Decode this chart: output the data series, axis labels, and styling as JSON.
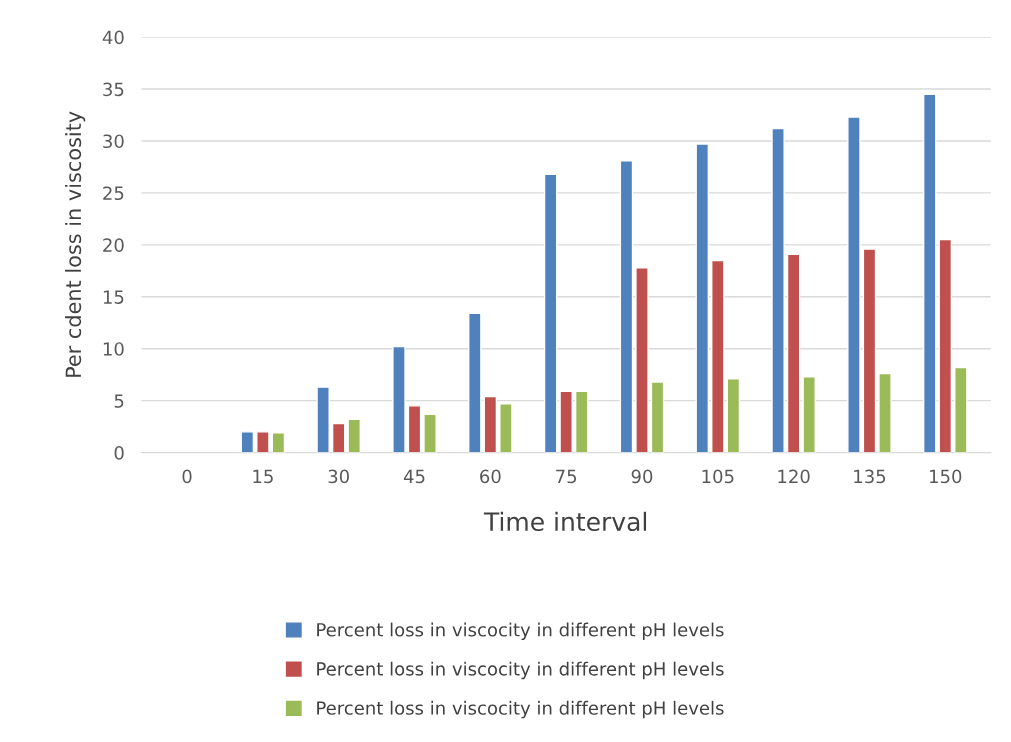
{
  "chart_data": {
    "type": "bar",
    "xlabel": "Time interval",
    "ylabel": "Per cdent loss in viscosity",
    "categories": [
      "0",
      "15",
      "30",
      "45",
      "60",
      "75",
      "90",
      "105",
      "120",
      "135",
      "150"
    ],
    "series": [
      {
        "name": "Percent loss in viscocity in different pH levels",
        "color": "#4f81bd",
        "values": [
          null,
          2.0,
          6.3,
          10.2,
          13.4,
          26.8,
          28.1,
          29.7,
          31.2,
          32.3,
          34.5
        ]
      },
      {
        "name": "Percent loss in viscocity in different pH levels",
        "color": "#c0504d",
        "values": [
          null,
          2.0,
          2.8,
          4.5,
          5.4,
          5.9,
          17.8,
          18.5,
          19.1,
          19.6,
          20.5
        ]
      },
      {
        "name": "Percent loss in viscocity in different pH levels",
        "color": "#9bbb59",
        "values": [
          null,
          1.9,
          3.2,
          3.7,
          4.7,
          5.9,
          6.8,
          7.1,
          7.3,
          7.6,
          8.2
        ]
      }
    ],
    "ylim": [
      0,
      40
    ],
    "yticks": [
      0,
      5,
      10,
      15,
      20,
      25,
      30,
      35,
      40
    ],
    "grid": "y",
    "legend": "bottom"
  }
}
